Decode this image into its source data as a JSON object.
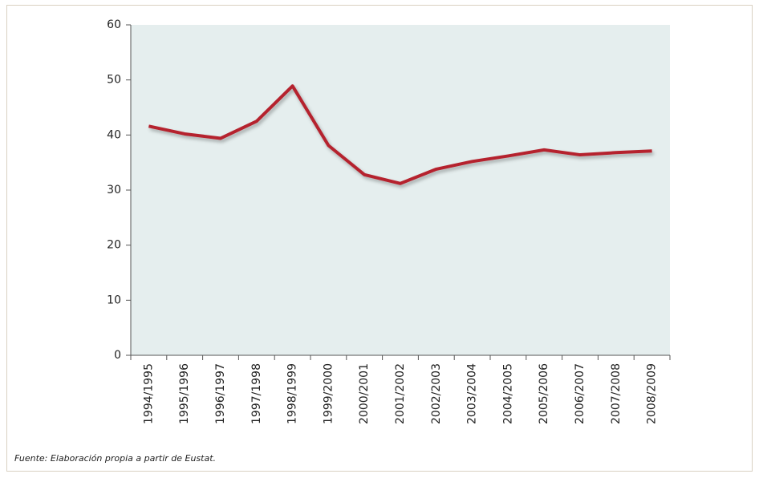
{
  "chart_data": {
    "type": "line",
    "categories": [
      "1994/1995",
      "1995/1996",
      "1996/1997",
      "1997/1998",
      "1998/1999",
      "1999/2000",
      "2000/2001",
      "2001/2002",
      "2002/2003",
      "2003/2004",
      "2004/2005",
      "2005/2006",
      "2006/2007",
      "2007/2008",
      "2008/2009"
    ],
    "values": [
      41.6,
      40.2,
      39.4,
      42.5,
      48.9,
      38.1,
      32.8,
      31.2,
      33.8,
      35.2,
      36.2,
      37.3,
      36.4,
      36.8,
      37.1
    ],
    "color": "#b5242e",
    "ylim": [
      0,
      60
    ],
    "yticks": [
      0,
      10,
      20,
      30,
      40,
      50,
      60
    ],
    "caption": "Fuente: Elaboración propia a partir de Eustat."
  }
}
